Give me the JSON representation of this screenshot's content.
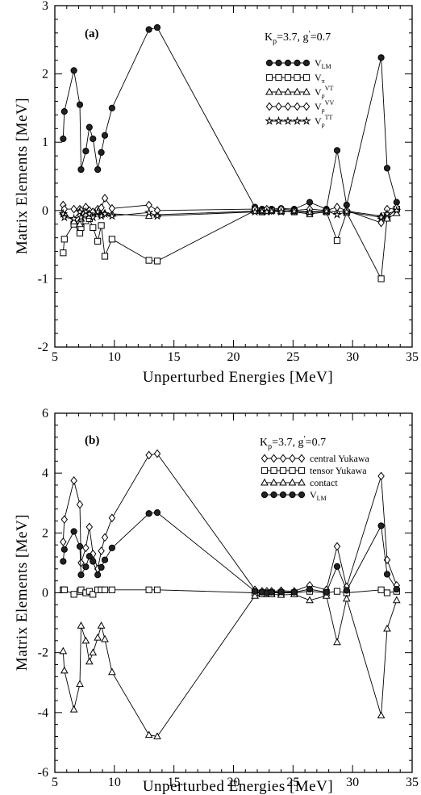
{
  "chart_data": [
    {
      "type": "line",
      "panel_label": "(a)",
      "annotation": "Kρ=3.7, g'=0.7",
      "xlabel": "Unperturbed Energies [MeV]",
      "ylabel": "Matrix Elements [MeV]",
      "xlim": [
        5,
        35
      ],
      "ylim": [
        -2,
        3
      ],
      "xticks": [
        5,
        10,
        15,
        20,
        25,
        30,
        35
      ],
      "yticks": [
        -2,
        -1,
        0,
        1,
        2,
        3
      ],
      "grid": false,
      "legend_position": "top-right",
      "series": [
        {
          "name": "V_LM",
          "marker": "filled-circle",
          "x": [
            5.7,
            5.8,
            6.6,
            7.1,
            7.2,
            7.6,
            7.9,
            8.2,
            8.6,
            8.9,
            9.2,
            9.8,
            12.9,
            13.6,
            21.8,
            22.4,
            22.8,
            23.2,
            24.0,
            25.1,
            26.4,
            27.8,
            28.7,
            29.5,
            32.4,
            32.9,
            33.7
          ],
          "y": [
            1.05,
            1.45,
            2.05,
            1.55,
            0.6,
            0.87,
            1.22,
            1.05,
            0.6,
            0.85,
            1.1,
            1.5,
            2.65,
            2.68,
            0.05,
            0.02,
            0.0,
            0.02,
            0.03,
            0.02,
            0.12,
            0.02,
            0.88,
            0.08,
            2.24,
            0.62,
            0.12
          ]
        },
        {
          "name": "V_π",
          "marker": "square",
          "x": [
            5.7,
            5.8,
            6.6,
            7.1,
            7.2,
            7.6,
            7.9,
            8.2,
            8.6,
            8.9,
            9.2,
            9.8,
            12.9,
            13.6,
            21.8,
            22.4,
            22.8,
            23.2,
            24.0,
            25.1,
            26.4,
            27.8,
            28.7,
            29.5,
            32.4,
            32.9,
            33.7
          ],
          "y": [
            -0.62,
            -0.42,
            -0.2,
            -0.33,
            -0.25,
            -0.15,
            -0.12,
            -0.25,
            -0.45,
            -0.22,
            -0.67,
            -0.42,
            -0.73,
            -0.74,
            0.0,
            -0.02,
            0.0,
            0.0,
            -0.01,
            -0.02,
            -0.05,
            -0.02,
            -0.44,
            -0.03,
            -1.0,
            -0.1,
            0.02
          ]
        },
        {
          "name": "V_ρ^VT",
          "marker": "triangle",
          "x": [
            5.7,
            5.8,
            6.6,
            7.1,
            7.2,
            7.6,
            7.9,
            8.2,
            8.6,
            8.9,
            9.2,
            9.8,
            12.9,
            13.6,
            21.8,
            22.4,
            22.8,
            23.2,
            24.0,
            25.1,
            26.4,
            27.8,
            28.7,
            29.5,
            32.4,
            32.9,
            33.7
          ],
          "y": [
            -0.02,
            -0.04,
            -0.16,
            -0.2,
            -0.12,
            -0.05,
            -0.08,
            -0.05,
            -0.02,
            -0.06,
            -0.04,
            -0.05,
            -0.08,
            -0.06,
            -0.01,
            0.0,
            -0.01,
            0.0,
            -0.01,
            -0.01,
            -0.02,
            -0.01,
            -0.02,
            -0.01,
            -0.08,
            -0.12,
            -0.04
          ]
        },
        {
          "name": "V_ρ^VV",
          "marker": "diamond",
          "x": [
            5.7,
            5.8,
            6.6,
            7.1,
            7.2,
            7.6,
            7.9,
            8.2,
            8.6,
            8.9,
            9.2,
            9.8,
            12.9,
            13.6,
            21.8,
            22.4,
            22.8,
            23.2,
            24.0,
            25.1,
            26.4,
            27.8,
            28.7,
            29.5,
            32.4,
            32.9,
            33.7
          ],
          "y": [
            0.08,
            0.02,
            0.02,
            0.02,
            0.0,
            0.05,
            0.0,
            -0.02,
            0.02,
            0.04,
            0.18,
            0.03,
            0.08,
            0.0,
            0.02,
            0.0,
            0.02,
            0.0,
            0.02,
            0.0,
            0.02,
            0.0,
            0.05,
            0.0,
            -0.18,
            0.02,
            0.04
          ]
        },
        {
          "name": "V_ρ^TT",
          "marker": "star",
          "x": [
            5.7,
            5.8,
            6.6,
            7.1,
            7.2,
            7.6,
            7.9,
            8.2,
            8.6,
            8.9,
            9.2,
            9.8,
            12.9,
            13.6,
            21.8,
            22.4,
            22.8,
            23.2,
            24.0,
            25.1,
            26.4,
            27.8,
            28.7,
            29.5,
            32.4,
            32.9,
            33.7
          ],
          "y": [
            -0.05,
            -0.1,
            -0.12,
            -0.02,
            -0.1,
            -0.02,
            -0.05,
            -0.1,
            -0.02,
            -0.08,
            -0.05,
            -0.08,
            -0.03,
            -0.08,
            -0.02,
            -0.01,
            -0.02,
            -0.01,
            -0.02,
            -0.01,
            -0.03,
            -0.01,
            -0.06,
            -0.02,
            -0.1,
            -0.05,
            0.0
          ]
        }
      ]
    },
    {
      "type": "line",
      "panel_label": "(b)",
      "annotation": "Kρ=3.7, g'=0.7",
      "xlabel": "Unperturbed Energies [MeV]",
      "ylabel": "Matrix Elements [MeV]",
      "xlim": [
        5,
        35
      ],
      "ylim": [
        -6,
        6
      ],
      "xticks": [
        5,
        10,
        15,
        20,
        25,
        30,
        35
      ],
      "yticks": [
        -6,
        -4,
        -2,
        0,
        2,
        4,
        6
      ],
      "grid": false,
      "legend_position": "top-right",
      "series": [
        {
          "name": "central Yukawa",
          "marker": "diamond",
          "x": [
            5.7,
            5.8,
            6.6,
            7.1,
            7.2,
            7.6,
            7.9,
            8.2,
            8.6,
            8.9,
            9.2,
            9.8,
            12.9,
            13.6,
            21.8,
            22.4,
            22.8,
            23.2,
            24.0,
            25.1,
            26.4,
            27.8,
            28.7,
            29.5,
            32.4,
            32.9,
            33.7
          ],
          "y": [
            1.7,
            2.45,
            3.75,
            2.95,
            1.0,
            1.5,
            2.2,
            1.3,
            0.8,
            1.4,
            1.85,
            2.5,
            4.6,
            4.65,
            0.1,
            0.05,
            0.05,
            0.05,
            0.07,
            0.05,
            0.25,
            0.1,
            1.55,
            0.2,
            3.9,
            1.1,
            0.25
          ]
        },
        {
          "name": "tensor Yukawa",
          "marker": "square",
          "x": [
            5.7,
            5.8,
            6.6,
            7.1,
            7.2,
            7.6,
            7.9,
            8.2,
            8.6,
            8.9,
            9.2,
            9.8,
            12.9,
            13.6,
            21.8,
            22.4,
            22.8,
            23.2,
            24.0,
            25.1,
            26.4,
            27.8,
            28.7,
            29.5,
            32.4,
            32.9,
            33.7
          ],
          "y": [
            0.1,
            0.1,
            -0.05,
            0.05,
            0.1,
            0.0,
            0.05,
            -0.05,
            0.1,
            0.1,
            0.1,
            0.1,
            0.1,
            0.1,
            0.0,
            0.0,
            0.0,
            0.0,
            0.0,
            0.0,
            0.05,
            0.0,
            0.05,
            0.0,
            0.1,
            0.0,
            0.05
          ]
        },
        {
          "name": "contact",
          "marker": "triangle",
          "x": [
            5.7,
            5.8,
            6.6,
            7.1,
            7.2,
            7.6,
            7.9,
            8.2,
            8.6,
            8.9,
            9.2,
            9.8,
            12.9,
            13.6,
            21.8,
            22.4,
            22.8,
            23.2,
            24.0,
            25.1,
            26.4,
            27.8,
            28.7,
            29.5,
            32.4,
            32.9,
            33.7
          ],
          "y": [
            -1.95,
            -2.6,
            -3.9,
            -3.05,
            -1.1,
            -1.6,
            -2.3,
            -2.0,
            -1.5,
            -1.1,
            -1.55,
            -2.65,
            -4.75,
            -4.8,
            -0.1,
            -0.05,
            -0.05,
            -0.05,
            -0.07,
            -0.05,
            -0.25,
            -0.1,
            -1.65,
            -0.2,
            -4.1,
            -1.2,
            -0.25
          ]
        },
        {
          "name": "V_LM",
          "marker": "filled-circle",
          "x": [
            5.7,
            5.8,
            6.6,
            7.1,
            7.2,
            7.6,
            7.9,
            8.2,
            8.6,
            8.9,
            9.2,
            9.8,
            12.9,
            13.6,
            21.8,
            22.4,
            22.8,
            23.2,
            24.0,
            25.1,
            26.4,
            27.8,
            28.7,
            29.5,
            32.4,
            32.9,
            33.7
          ],
          "y": [
            1.05,
            1.45,
            2.05,
            1.55,
            0.6,
            0.87,
            1.22,
            1.05,
            0.6,
            0.85,
            1.1,
            1.5,
            2.65,
            2.68,
            0.05,
            0.02,
            0.0,
            0.02,
            0.03,
            0.02,
            0.12,
            0.02,
            0.88,
            0.08,
            2.24,
            0.62,
            0.12
          ]
        }
      ]
    }
  ]
}
